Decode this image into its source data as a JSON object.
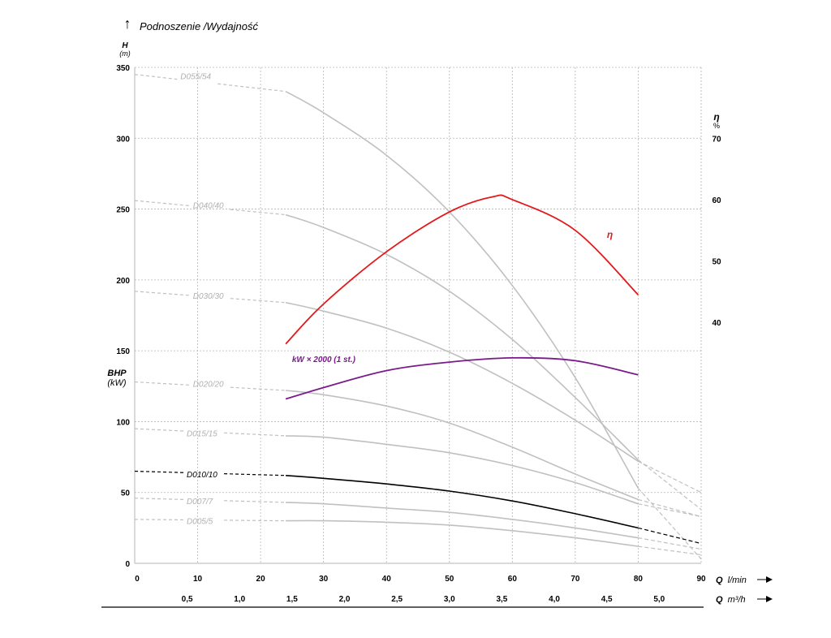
{
  "chart_data": {
    "type": "line",
    "title": "Podnoszenie /Wydajność",
    "left_axis": {
      "label": "H",
      "unit": "(m)",
      "ylim": [
        0,
        350
      ],
      "ticks": [
        0,
        50,
        100,
        150,
        200,
        250,
        300,
        350
      ]
    },
    "bhp_axis": {
      "label": "BHP",
      "unit": "(kW)"
    },
    "right_axis": {
      "label": "η",
      "unit": "%",
      "ticks": [
        40,
        50,
        60,
        70
      ]
    },
    "x_axis": {
      "label": "Q",
      "unit": "l/min",
      "xlim": [
        0,
        90
      ],
      "ticks": [
        0,
        10,
        20,
        30,
        40,
        50,
        60,
        70,
        80,
        90
      ]
    },
    "x2_axis": {
      "label": "Q",
      "unit": "m³/h",
      "ticks": [
        "0,5",
        "1,0",
        "1,5",
        "2,0",
        "2,5",
        "3,0",
        "3,5",
        "4,0",
        "4,5",
        "5,0"
      ]
    },
    "grid": true,
    "series": [
      {
        "name": "D055/54",
        "label_anchor": [
          7,
          344
        ],
        "color": "#c0c0c0",
        "highlight": false,
        "pre": [
          [
            0,
            345
          ],
          [
            24,
            333
          ]
        ],
        "main": [
          [
            24,
            333
          ],
          [
            30,
            318
          ],
          [
            40,
            288
          ],
          [
            50,
            248
          ],
          [
            60,
            196
          ],
          [
            70,
            131
          ],
          [
            80,
            53
          ]
        ],
        "post": [
          [
            80,
            53
          ],
          [
            90,
            3
          ]
        ]
      },
      {
        "name": "D040/40",
        "label_anchor": [
          9,
          253
        ],
        "color": "#c0c0c0",
        "highlight": false,
        "pre": [
          [
            0,
            256
          ],
          [
            24,
            246
          ]
        ],
        "main": [
          [
            24,
            246
          ],
          [
            30,
            237
          ],
          [
            40,
            218
          ],
          [
            50,
            192
          ],
          [
            60,
            158
          ],
          [
            70,
            117
          ],
          [
            80,
            73
          ]
        ],
        "post": [
          [
            80,
            73
          ],
          [
            90,
            38
          ]
        ]
      },
      {
        "name": "D030/30",
        "label_anchor": [
          9,
          189
        ],
        "color": "#c0c0c0",
        "highlight": false,
        "pre": [
          [
            0,
            192
          ],
          [
            24,
            184
          ]
        ],
        "main": [
          [
            24,
            184
          ],
          [
            30,
            178
          ],
          [
            40,
            166
          ],
          [
            50,
            149
          ],
          [
            60,
            127
          ],
          [
            70,
            101
          ],
          [
            80,
            72
          ]
        ],
        "post": [
          [
            80,
            72
          ],
          [
            90,
            50
          ]
        ]
      },
      {
        "name": "D020/20",
        "label_anchor": [
          9,
          127
        ],
        "color": "#c0c0c0",
        "highlight": false,
        "pre": [
          [
            0,
            128
          ],
          [
            24,
            122
          ]
        ],
        "main": [
          [
            24,
            122
          ],
          [
            30,
            119
          ],
          [
            40,
            111
          ],
          [
            50,
            99
          ],
          [
            60,
            82
          ],
          [
            70,
            63
          ],
          [
            80,
            45
          ]
        ],
        "post": [
          [
            80,
            45
          ],
          [
            90,
            33
          ]
        ]
      },
      {
        "name": "D015/15",
        "label_anchor": [
          8,
          92
        ],
        "color": "#c0c0c0",
        "highlight": false,
        "pre": [
          [
            0,
            95
          ],
          [
            24,
            90
          ]
        ],
        "main": [
          [
            24,
            90
          ],
          [
            30,
            89
          ],
          [
            40,
            84
          ],
          [
            50,
            78
          ],
          [
            60,
            69
          ],
          [
            70,
            57
          ],
          [
            80,
            42
          ]
        ],
        "post": [
          [
            80,
            42
          ],
          [
            90,
            33
          ]
        ]
      },
      {
        "name": "D010/10",
        "label_anchor": [
          8,
          63
        ],
        "color": "#000000",
        "highlight": true,
        "pre": [
          [
            0,
            65
          ],
          [
            24,
            62
          ]
        ],
        "main": [
          [
            24,
            62
          ],
          [
            30,
            60
          ],
          [
            40,
            56
          ],
          [
            50,
            51
          ],
          [
            60,
            44
          ],
          [
            70,
            35
          ],
          [
            80,
            25
          ]
        ],
        "post": [
          [
            80,
            25
          ],
          [
            90,
            14
          ]
        ]
      },
      {
        "name": "D007/7",
        "label_anchor": [
          8,
          44
        ],
        "color": "#c0c0c0",
        "highlight": false,
        "pre": [
          [
            0,
            46
          ],
          [
            24,
            43
          ]
        ],
        "main": [
          [
            24,
            43
          ],
          [
            30,
            42
          ],
          [
            40,
            39
          ],
          [
            50,
            36
          ],
          [
            60,
            31
          ],
          [
            70,
            25
          ],
          [
            80,
            18
          ]
        ],
        "post": [
          [
            80,
            18
          ],
          [
            90,
            10
          ]
        ]
      },
      {
        "name": "D005/5",
        "label_anchor": [
          8,
          30
        ],
        "color": "#c0c0c0",
        "highlight": false,
        "pre": [
          [
            0,
            31
          ],
          [
            24,
            30
          ]
        ],
        "main": [
          [
            24,
            30
          ],
          [
            30,
            30
          ],
          [
            40,
            29
          ],
          [
            50,
            27
          ],
          [
            60,
            23
          ],
          [
            70,
            18
          ],
          [
            80,
            12
          ]
        ],
        "post": [
          [
            80,
            12
          ],
          [
            90,
            6
          ]
        ]
      }
    ],
    "efficiency": {
      "name": "η",
      "color": "#e3191b",
      "points": [
        [
          24,
          36.5
        ],
        [
          30,
          43
        ],
        [
          40,
          51.5
        ],
        [
          50,
          58
        ],
        [
          57,
          60.5
        ],
        [
          60,
          60
        ],
        [
          70,
          55
        ],
        [
          80,
          44.5
        ]
      ]
    },
    "power": {
      "name": "kW × 2000 (1 st.)",
      "color": "#7a1a8c",
      "points": [
        [
          24,
          116
        ],
        [
          30,
          124
        ],
        [
          40,
          136
        ],
        [
          50,
          142
        ],
        [
          60,
          145
        ],
        [
          70,
          143
        ],
        [
          80,
          133
        ]
      ]
    }
  }
}
